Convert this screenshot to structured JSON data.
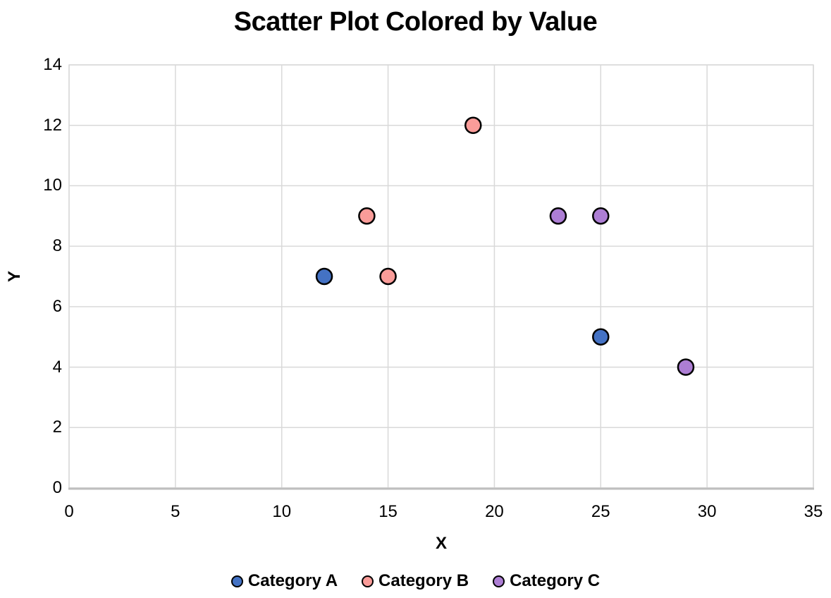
{
  "chart_data": {
    "type": "scatter",
    "title": "Scatter Plot Colored by Value",
    "xlabel": "X",
    "ylabel": "Y",
    "xlim": [
      0,
      35
    ],
    "ylim": [
      0,
      14
    ],
    "xticks": [
      0,
      5,
      10,
      15,
      20,
      25,
      30,
      35
    ],
    "yticks": [
      0,
      2,
      4,
      6,
      8,
      10,
      12,
      14
    ],
    "grid": true,
    "legend_position": "bottom",
    "series": [
      {
        "name": "Category A",
        "color": "#4472C4",
        "points": [
          [
            12,
            7
          ],
          [
            25,
            5
          ]
        ]
      },
      {
        "name": "Category B",
        "color": "#FA9C99",
        "points": [
          [
            14,
            9
          ],
          [
            15,
            7
          ],
          [
            19,
            12
          ]
        ]
      },
      {
        "name": "Category C",
        "color": "#AD7ED4",
        "points": [
          [
            23,
            9
          ],
          [
            25,
            9
          ],
          [
            29,
            4
          ]
        ]
      }
    ],
    "colors": {
      "marker_outline": "#000000",
      "gridline": "#D9D9D9",
      "axis_line": "#BFBFBF",
      "text": "#000000",
      "background": "#FFFFFF"
    }
  }
}
